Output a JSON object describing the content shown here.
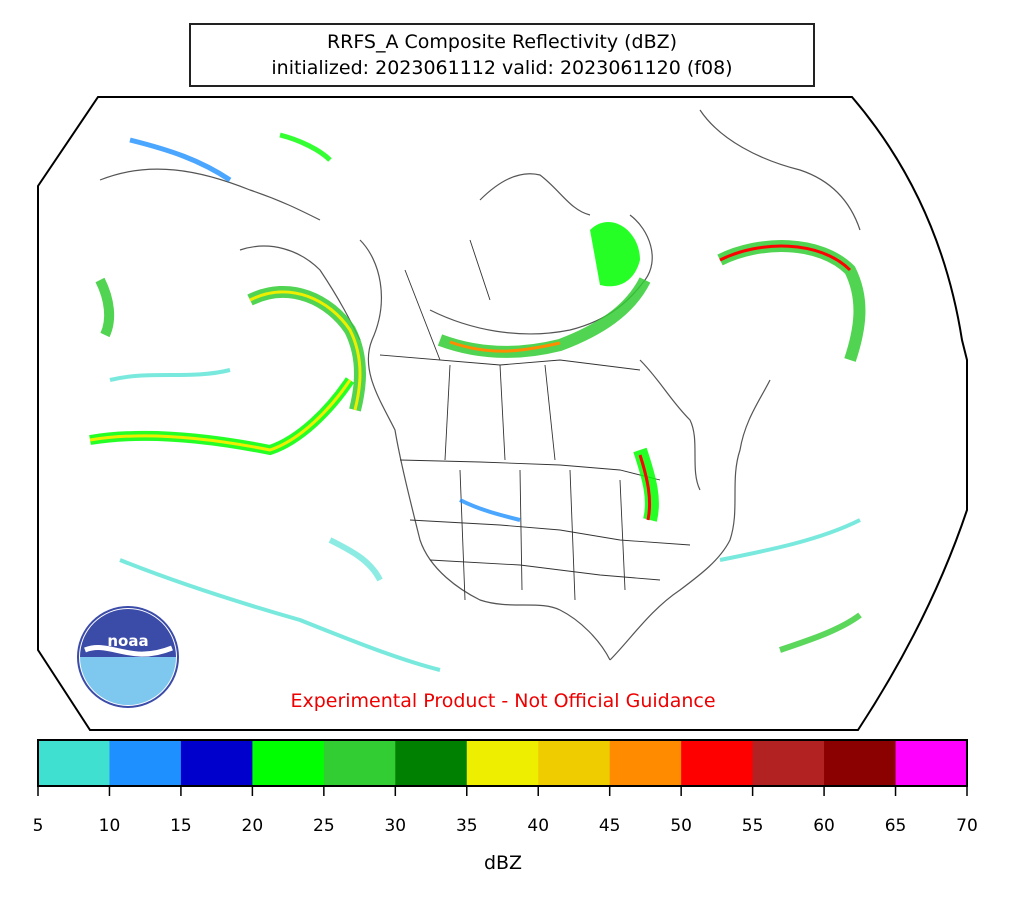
{
  "title": {
    "line1": "RRFS_A Composite Reflectivity (dBZ)",
    "line2": "initialized: 2023061112 valid: 2023061120 (f08)"
  },
  "disclaimer": "Experimental Product - Not Official Guidance",
  "logo": {
    "name": "noaa-logo",
    "text": "noaa"
  },
  "colorbar": {
    "label": "dBZ",
    "ticks": [
      "5",
      "10",
      "15",
      "20",
      "25",
      "30",
      "35",
      "40",
      "45",
      "50",
      "55",
      "60",
      "65",
      "70"
    ],
    "colors": [
      "#40e0d0",
      "#1e90ff",
      "#0000cd",
      "#00ff00",
      "#32cd32",
      "#008000",
      "#eeee00",
      "#eecc00",
      "#ff8c00",
      "#ff0000",
      "#b22222",
      "#8b0000",
      "#ff00ff"
    ]
  }
}
